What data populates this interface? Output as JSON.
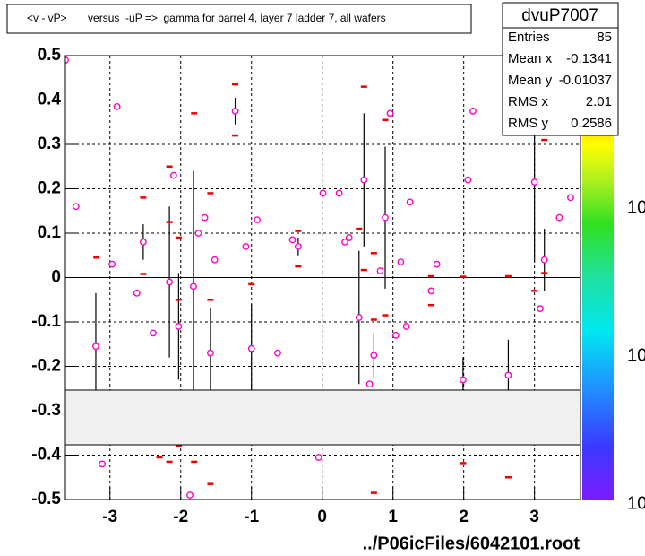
{
  "chart_data": {
    "type": "scatter",
    "title": "<v - vP>       versus  -uP =>  gamma for barrel 4, layer 7 ladder 7, all wafers",
    "footer": "../P06icFiles/6042101.root",
    "xlim": [
      -3.63,
      3.65
    ],
    "ylim": [
      -0.5,
      0.5
    ],
    "xticks": [
      -3,
      -2,
      -1,
      0,
      1,
      2,
      3
    ],
    "yticks": [
      -0.5,
      -0.4,
      -0.3,
      -0.2,
      -0.1,
      0,
      0.1,
      0.2,
      0.3,
      0.4,
      0.5
    ],
    "grid": true,
    "series": [
      {
        "color": "#ff00cc",
        "marker": "circle",
        "x": [
          -3.63,
          -3.48,
          -3.2,
          -2.97,
          -2.9,
          -2.62,
          -2.53,
          -2.39,
          -2.16,
          -2.1,
          -2.03,
          -1.82,
          -1.75,
          -1.66,
          -1.58,
          -1.52,
          -1.23,
          -1.08,
          -1.0,
          -0.92,
          -0.63,
          -0.42,
          -0.34,
          -0.05,
          0.01,
          0.24,
          0.32,
          0.38,
          0.52,
          0.59,
          0.67,
          0.73,
          0.82,
          0.89,
          0.96,
          1.04,
          1.11,
          1.19,
          1.24,
          1.54,
          1.62,
          1.99,
          2.06,
          2.13,
          2.63,
          3.0,
          3.08,
          3.14,
          3.35,
          3.51,
          -1.87,
          -3.11
        ],
        "values": [
          0.49,
          0.16,
          -0.155,
          0.03,
          0.385,
          -0.035,
          0.08,
          -0.125,
          -0.01,
          0.23,
          -0.11,
          -0.02,
          0.1,
          0.135,
          -0.17,
          0.04,
          0.375,
          0.07,
          -0.16,
          0.13,
          -0.17,
          0.085,
          0.07,
          -0.405,
          0.19,
          0.19,
          0.08,
          0.09,
          -0.09,
          0.22,
          -0.24,
          -0.175,
          0.015,
          0.135,
          0.37,
          -0.13,
          0.035,
          -0.11,
          0.17,
          -0.03,
          0.03,
          -0.23,
          0.22,
          0.375,
          -0.22,
          0.215,
          -0.07,
          0.04,
          0.135,
          0.18,
          -0.49,
          -0.42
        ],
        "errors": [
          null,
          null,
          0.12,
          null,
          null,
          null,
          0.04,
          null,
          0.17,
          null,
          0.12,
          0.26,
          null,
          null,
          0.1,
          null,
          0.03,
          null,
          0.1,
          null,
          null,
          null,
          0.02,
          null,
          null,
          null,
          null,
          null,
          0.15,
          0.15,
          null,
          0.05,
          null,
          0.16,
          null,
          null,
          null,
          null,
          null,
          null,
          null,
          0.05,
          null,
          null,
          0.08,
          0.18,
          null,
          0.07,
          null,
          null,
          null,
          null
        ]
      },
      {
        "color": "#ee0000",
        "marker": "dash",
        "x": [
          -3.19,
          -2.53,
          -2.53,
          -2.16,
          -2.16,
          -2.03,
          -2.03,
          -2.03,
          -2.3,
          -2.16,
          -1.81,
          -1.81,
          -1.58,
          -1.58,
          -1.58,
          -1.23,
          -1.23,
          -1.0,
          -0.34,
          -0.34,
          0.52,
          0.59,
          0.59,
          0.73,
          0.73,
          0.73,
          0.89,
          0.89,
          1.54,
          1.54,
          1.99,
          1.99,
          2.63,
          2.63,
          3.0,
          3.14,
          3.14
        ],
        "values": [
          0.045,
          0.18,
          0.008,
          0.25,
          0.125,
          0.09,
          -0.05,
          -0.38,
          -0.405,
          -0.415,
          0.37,
          -0.415,
          0.19,
          -0.05,
          -0.465,
          0.435,
          0.32,
          -0.015,
          0.105,
          0.025,
          0.11,
          0.43,
          0.017,
          0.055,
          -0.095,
          -0.485,
          0.355,
          -0.085,
          0.003,
          -0.062,
          0.002,
          -0.418,
          0.003,
          -0.45,
          -0.03,
          0.31,
          0.01
        ]
      }
    ],
    "stats": {
      "title": "dvuP7007",
      "rows": [
        [
          "Entries",
          85
        ],
        [
          "Mean x",
          -0.1341
        ],
        [
          "Mean y",
          -0.01037
        ],
        [
          "RMS x",
          2.01
        ],
        [
          "RMS y",
          0.2586
        ]
      ]
    },
    "palette_labels": [
      "10",
      "10",
      "10"
    ]
  }
}
